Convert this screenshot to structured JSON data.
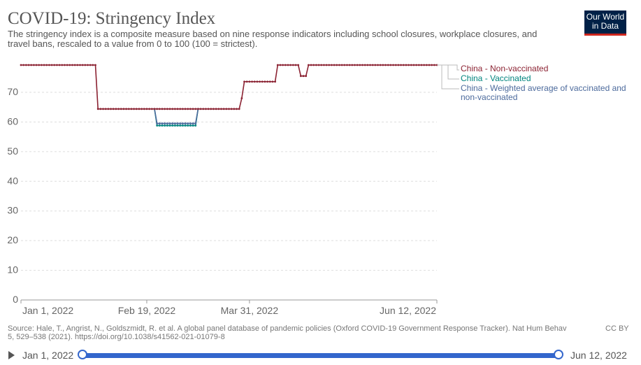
{
  "header": {
    "title": "COVID-19: Stringency Index",
    "subtitle": "The stringency index is a composite measure based on nine response indicators including school closures, workplace closures, and travel bans, rescaled to a value from 0 to 100 (100 = strictest).",
    "logo_line1": "Our World",
    "logo_line2": "in Data"
  },
  "chart_data": {
    "type": "line",
    "title": "COVID-19: Stringency Index",
    "ylim": [
      0,
      80
    ],
    "yticks": [
      0,
      10,
      20,
      30,
      40,
      50,
      60,
      70
    ],
    "ytick_labels": [
      "0",
      "10",
      "20",
      "30",
      "40",
      "50",
      "60",
      "70"
    ],
    "xlim": [
      "2022-01-01",
      "2022-06-12"
    ],
    "xticks": [
      "2022-01-01",
      "2022-02-19",
      "2022-03-31",
      "2022-06-12"
    ],
    "xtick_labels": [
      "Jan 1, 2022",
      "Feb 19, 2022",
      "Mar 31, 2022",
      "Jun 12, 2022"
    ],
    "grid": "horizontal-dashed",
    "legend_position": "right",
    "series": [
      {
        "name": "China - Non-vaccinated",
        "color": "#8b2232",
        "points": [
          [
            "2022-01-01",
            79.2
          ],
          [
            "2022-01-30",
            79.2
          ],
          [
            "2022-01-31",
            64.4
          ],
          [
            "2022-03-27",
            64.4
          ],
          [
            "2022-03-28",
            68.0
          ],
          [
            "2022-03-29",
            73.6
          ],
          [
            "2022-04-10",
            73.6
          ],
          [
            "2022-04-11",
            79.2
          ],
          [
            "2022-04-19",
            79.2
          ],
          [
            "2022-04-20",
            75.5
          ],
          [
            "2022-04-22",
            75.5
          ],
          [
            "2022-04-23",
            79.2
          ],
          [
            "2022-06-12",
            79.2
          ]
        ]
      },
      {
        "name": "China - Vaccinated",
        "color": "#00847e",
        "points": [
          [
            "2022-02-22",
            64.4
          ],
          [
            "2022-02-23",
            58.8
          ],
          [
            "2022-03-10",
            58.8
          ],
          [
            "2022-03-11",
            64.4
          ]
        ]
      },
      {
        "name": "China - Weighted average of vaccinated and non-vaccinated",
        "color": "#4c6a9c",
        "points": [
          [
            "2022-02-22",
            64.4
          ],
          [
            "2022-02-23",
            59.5
          ],
          [
            "2022-03-10",
            59.5
          ],
          [
            "2022-03-11",
            64.4
          ]
        ]
      }
    ]
  },
  "legend": [
    {
      "label": "China - Non-vaccinated",
      "color": "#8b2232"
    },
    {
      "label": "China - Vaccinated",
      "color": "#00847e"
    },
    {
      "label": "China - Weighted average of vaccinated and non-vaccinated",
      "color": "#4c6a9c"
    }
  ],
  "footer": {
    "source": "Source: Hale, T., Angrist, N., Goldszmidt, R. et al. A global panel database of pandemic policies (Oxford COVID-19 Government Response Tracker). Nat Hum Behav 5, 529–538 (2021). https://doi.org/10.1038/s41562-021-01079-8",
    "license": "CC BY"
  },
  "timeline": {
    "start_label": "Jan 1, 2022",
    "end_label": "Jun 12, 2022"
  }
}
